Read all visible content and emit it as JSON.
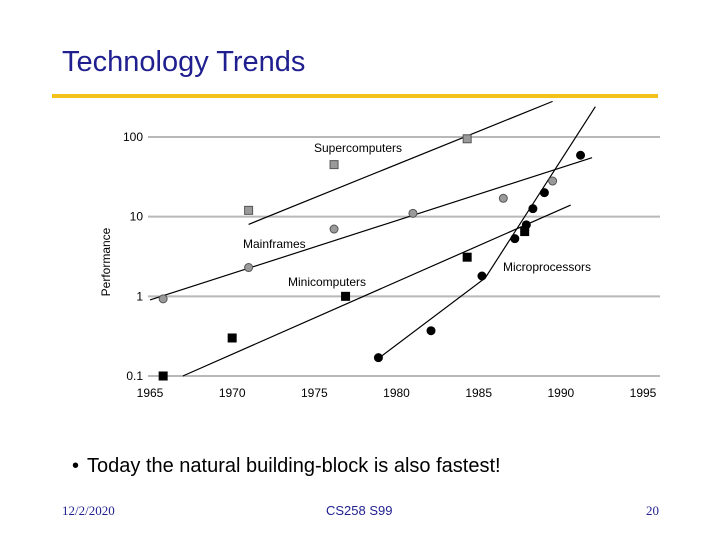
{
  "slide": {
    "title": "Technology Trends",
    "bullet_char": "•",
    "bullet": "Today the natural building-block is also fastest!",
    "footer": {
      "date": "12/2/2020",
      "course": "CS258 S99",
      "page": "20"
    },
    "accent_color": "#f2c21b",
    "title_color": "#1f1f8f"
  },
  "chart_data": {
    "type": "scatter",
    "title": "",
    "xlabel": "",
    "ylabel": "Performance",
    "y_scale": "log",
    "xlim": [
      1965,
      1995
    ],
    "ylim": [
      0.1,
      100
    ],
    "x_ticks": [
      "1965",
      "1970",
      "1975",
      "1980",
      "1985",
      "1990",
      "1995"
    ],
    "y_ticks": [
      "0.1",
      "1",
      "10",
      "100"
    ],
    "grid": "horizontal",
    "series": [
      {
        "name": "Supercomputers",
        "marker": "square-gray",
        "points": [
          [
            1971,
            12
          ],
          [
            1976.2,
            45
          ],
          [
            1984.3,
            95
          ]
        ],
        "trend": [
          [
            1971,
            8
          ],
          [
            1989.5,
            280
          ]
        ]
      },
      {
        "name": "Mainframes",
        "marker": "circle-gray",
        "points": [
          [
            1965.8,
            0.93
          ],
          [
            1971,
            2.3
          ],
          [
            1976.2,
            7
          ],
          [
            1981,
            11
          ],
          [
            1986.5,
            17
          ],
          [
            1989.5,
            28
          ]
        ],
        "trend": [
          [
            1965,
            0.9
          ],
          [
            1991.9,
            55
          ]
        ]
      },
      {
        "name": "Minicomputers",
        "marker": "square-black",
        "points": [
          [
            1965.8,
            0.1
          ],
          [
            1970,
            0.3
          ],
          [
            1976.9,
            1
          ],
          [
            1984.3,
            3.1
          ],
          [
            1987.8,
            6.5
          ]
        ],
        "trend": [
          [
            1967,
            0.1
          ],
          [
            1990.6,
            14
          ]
        ]
      },
      {
        "name": "Microprocessors",
        "marker": "circle-black",
        "points": [
          [
            1978.9,
            0.17
          ],
          [
            1982.1,
            0.37
          ],
          [
            1985.2,
            1.8
          ],
          [
            1987.2,
            5.3
          ],
          [
            1987.9,
            7.9
          ],
          [
            1988.3,
            12.6
          ],
          [
            1989,
            20
          ],
          [
            1991.2,
            59
          ]
        ],
        "trend": [
          [
            1978.8,
            0.16
          ],
          [
            1985.4,
            1.7
          ],
          [
            1992.1,
            240
          ]
        ]
      }
    ]
  }
}
